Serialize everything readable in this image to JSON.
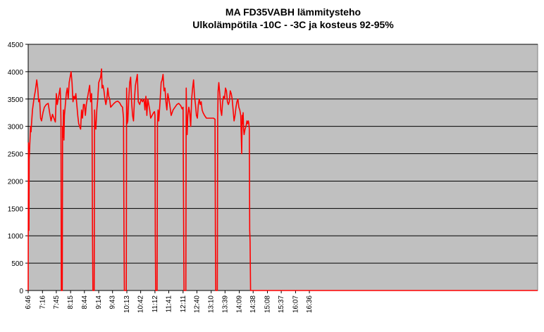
{
  "chart_data": {
    "type": "line",
    "title": "MA FD35VABH lämmitysteho",
    "subtitle": "Ulkolämpötila  -10C - -3C ja kosteus 92-95%",
    "xlabel": "",
    "ylabel": "",
    "ylim": [
      0,
      4500
    ],
    "yticks": [
      0,
      500,
      1000,
      1500,
      2000,
      2500,
      3000,
      3500,
      4000,
      4500
    ],
    "xticks": [
      "6:46",
      "7:16",
      "7:45",
      "8:15",
      "8:44",
      "9:14",
      "9:43",
      "10:13",
      "10:42",
      "11:12",
      "11:41",
      "12:11",
      "12:40",
      "13:10",
      "13:39",
      "14:09",
      "14:38",
      "15:08",
      "15:37",
      "16:07",
      "16:36"
    ],
    "x_range_minutes": [
      406,
      1475
    ],
    "grid": "horizontal",
    "background": "#c0c0c0",
    "line_color": "#ff0000",
    "series": [
      {
        "points": [
          [
            406,
            0
          ],
          [
            406.3,
            1500
          ],
          [
            406.6,
            2700
          ],
          [
            407.1,
            1200
          ],
          [
            407.6,
            1100
          ],
          [
            408.1,
            2400
          ],
          [
            409,
            2600
          ],
          [
            410,
            2800
          ],
          [
            411,
            3000
          ],
          [
            412,
            2900
          ],
          [
            413,
            3050
          ],
          [
            415,
            3300
          ],
          [
            418,
            3500
          ],
          [
            421,
            3650
          ],
          [
            424,
            3850
          ],
          [
            426,
            3700
          ],
          [
            428,
            3450
          ],
          [
            430,
            3500
          ],
          [
            432,
            3150
          ],
          [
            434,
            3100
          ],
          [
            437,
            3250
          ],
          [
            440,
            3350
          ],
          [
            444,
            3400
          ],
          [
            448,
            3420
          ],
          [
            451,
            3250
          ],
          [
            454,
            3100
          ],
          [
            457,
            3220
          ],
          [
            460,
            3150
          ],
          [
            463,
            3080
          ],
          [
            465,
            3600
          ],
          [
            467,
            3400
          ],
          [
            469,
            3500
          ],
          [
            471,
            3600
          ],
          [
            473,
            3700
          ],
          [
            474,
            3500
          ],
          [
            474.8,
            3100
          ],
          [
            475.5,
            0
          ],
          [
            477.5,
            0
          ],
          [
            478.2,
            3000
          ],
          [
            479,
            2800
          ],
          [
            480,
            3300
          ],
          [
            481,
            2750
          ],
          [
            482,
            3200
          ],
          [
            484,
            3400
          ],
          [
            486,
            3600
          ],
          [
            488,
            3700
          ],
          [
            490,
            3500
          ],
          [
            492,
            3800
          ],
          [
            494,
            3900
          ],
          [
            496,
            4000
          ],
          [
            498,
            3800
          ],
          [
            500,
            3450
          ],
          [
            502,
            3550
          ],
          [
            504,
            3500
          ],
          [
            506,
            3600
          ],
          [
            508,
            3400
          ],
          [
            510,
            3200
          ],
          [
            512,
            3050
          ],
          [
            514,
            3000
          ],
          [
            516,
            2950
          ],
          [
            518,
            3300
          ],
          [
            520,
            3150
          ],
          [
            522,
            3400
          ],
          [
            524,
            3400
          ],
          [
            526,
            3200
          ],
          [
            528,
            3400
          ],
          [
            531,
            3550
          ],
          [
            533,
            3650
          ],
          [
            535,
            3750
          ],
          [
            537,
            3450
          ],
          [
            539,
            3600
          ],
          [
            540,
            3200
          ],
          [
            541,
            1000
          ],
          [
            541.8,
            0
          ],
          [
            544.5,
            0
          ],
          [
            545.3,
            3300
          ],
          [
            546.5,
            3000
          ],
          [
            548,
            2950
          ],
          [
            550,
            3300
          ],
          [
            552,
            3500
          ],
          [
            554,
            3800
          ],
          [
            556,
            3850
          ],
          [
            558,
            3900
          ],
          [
            560,
            4050
          ],
          [
            561,
            3700
          ],
          [
            563,
            3750
          ],
          [
            565,
            3650
          ],
          [
            567,
            3500
          ],
          [
            569,
            3400
          ],
          [
            571,
            3500
          ],
          [
            573,
            3700
          ],
          [
            575,
            3550
          ],
          [
            577,
            3500
          ],
          [
            579,
            3350
          ],
          [
            582,
            3380
          ],
          [
            586,
            3420
          ],
          [
            590,
            3450
          ],
          [
            594,
            3460
          ],
          [
            598,
            3430
          ],
          [
            601,
            3380
          ],
          [
            604,
            3350
          ],
          [
            606,
            3150
          ],
          [
            607,
            1100
          ],
          [
            607.8,
            0
          ],
          [
            611.8,
            0
          ],
          [
            612.5,
            3700
          ],
          [
            613.5,
            3050
          ],
          [
            615,
            3100
          ],
          [
            617,
            3500
          ],
          [
            619,
            3800
          ],
          [
            621,
            3900
          ],
          [
            623,
            3450
          ],
          [
            625,
            3200
          ],
          [
            627,
            3100
          ],
          [
            629,
            3500
          ],
          [
            631,
            3750
          ],
          [
            633,
            3850
          ],
          [
            635,
            3950
          ],
          [
            637,
            3450
          ],
          [
            640,
            3400
          ],
          [
            643,
            3500
          ],
          [
            646,
            3450
          ],
          [
            649,
            3500
          ],
          [
            651,
            3300
          ],
          [
            653,
            3550
          ],
          [
            655,
            3200
          ],
          [
            657,
            3500
          ],
          [
            659,
            3400
          ],
          [
            661,
            3300
          ],
          [
            663,
            3150
          ],
          [
            666,
            3200
          ],
          [
            669,
            3250
          ],
          [
            671,
            3270
          ],
          [
            672,
            3200
          ],
          [
            672.7,
            1000
          ],
          [
            673.5,
            0
          ],
          [
            676.5,
            0
          ],
          [
            677.3,
            3050
          ],
          [
            678.5,
            3300
          ],
          [
            680,
            3100
          ],
          [
            683,
            3500
          ],
          [
            685,
            3800
          ],
          [
            687,
            3850
          ],
          [
            689,
            3950
          ],
          [
            691,
            3650
          ],
          [
            693,
            3700
          ],
          [
            695,
            3450
          ],
          [
            697,
            3300
          ],
          [
            699,
            3600
          ],
          [
            701,
            3500
          ],
          [
            703,
            3400
          ],
          [
            706,
            3200
          ],
          [
            710,
            3300
          ],
          [
            714,
            3350
          ],
          [
            718,
            3400
          ],
          [
            722,
            3420
          ],
          [
            726,
            3380
          ],
          [
            729,
            3320
          ],
          [
            731,
            3350
          ],
          [
            732.3,
            1000
          ],
          [
            733,
            0
          ],
          [
            736.8,
            0
          ],
          [
            737.6,
            3700
          ],
          [
            738.5,
            3100
          ],
          [
            739.5,
            2850
          ],
          [
            741,
            3200
          ],
          [
            743,
            3350
          ],
          [
            745,
            3250
          ],
          [
            747,
            3000
          ],
          [
            749,
            3500
          ],
          [
            751,
            3700
          ],
          [
            753,
            3850
          ],
          [
            755,
            3550
          ],
          [
            757,
            3400
          ],
          [
            759,
            3200
          ],
          [
            761,
            3150
          ],
          [
            763,
            3400
          ],
          [
            765,
            3500
          ],
          [
            767,
            3400
          ],
          [
            769,
            3450
          ],
          [
            771,
            3300
          ],
          [
            773,
            3250
          ],
          [
            776,
            3200
          ],
          [
            780,
            3150
          ],
          [
            785,
            3150
          ],
          [
            790,
            3150
          ],
          [
            795,
            3150
          ],
          [
            798,
            3130
          ],
          [
            798.8,
            1000
          ],
          [
            799.6,
            0
          ],
          [
            802.8,
            0
          ],
          [
            803.6,
            3150
          ],
          [
            804.5,
            3650
          ],
          [
            806,
            3800
          ],
          [
            808,
            3600
          ],
          [
            810,
            3300
          ],
          [
            812,
            3200
          ],
          [
            814,
            3450
          ],
          [
            816,
            3550
          ],
          [
            818,
            3500
          ],
          [
            820,
            3700
          ],
          [
            822,
            3650
          ],
          [
            824,
            3450
          ],
          [
            826,
            3400
          ],
          [
            828,
            3450
          ],
          [
            830,
            3650
          ],
          [
            832,
            3600
          ],
          [
            834,
            3500
          ],
          [
            836,
            3300
          ],
          [
            838,
            3100
          ],
          [
            840,
            3200
          ],
          [
            842,
            3350
          ],
          [
            844,
            3450
          ],
          [
            846,
            3500
          ],
          [
            848,
            3350
          ],
          [
            850,
            3300
          ],
          [
            852,
            3200
          ],
          [
            854,
            2500
          ],
          [
            855,
            3200
          ],
          [
            856,
            3050
          ],
          [
            857,
            3250
          ],
          [
            858,
            2950
          ],
          [
            859,
            2850
          ],
          [
            861,
            2950
          ],
          [
            863,
            3000
          ],
          [
            865,
            3100
          ],
          [
            866,
            3050
          ],
          [
            868,
            3100
          ],
          [
            869,
            3050
          ],
          [
            870,
            2950
          ],
          [
            870.8,
            1100
          ],
          [
            871.6,
            900
          ],
          [
            872.6,
            0
          ],
          [
            1475,
            0
          ]
        ]
      }
    ]
  }
}
